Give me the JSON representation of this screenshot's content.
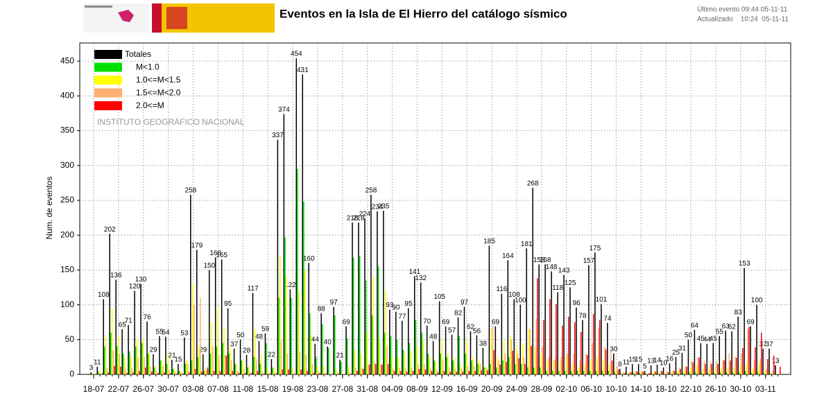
{
  "header": {
    "updates": [
      "Último evento 09:44 05-11-11",
      "Actualizado    10:24  05-11-11"
    ]
  },
  "chart_data": {
    "type": "bar",
    "title": "Eventos en la Isla de El Hierro del catálogo sísmico",
    "watermark": "INSTITUTO GEOGRÁFICO NACIONAL",
    "ylabel": "Num. de eventos",
    "ylim": [
      0,
      476
    ],
    "yticks": [
      0,
      50,
      100,
      150,
      200,
      250,
      300,
      350,
      400,
      450
    ],
    "grid": true,
    "legend": "upper left",
    "categories": [
      "18-07",
      null,
      null,
      null,
      "22-07",
      null,
      null,
      null,
      "26-07",
      null,
      null,
      null,
      "30-07",
      null,
      null,
      null,
      "03-08",
      null,
      null,
      null,
      "07-08",
      null,
      null,
      null,
      "11-08",
      null,
      null,
      null,
      "15-08",
      null,
      null,
      null,
      "19-08",
      null,
      null,
      null,
      "23-08",
      null,
      null,
      null,
      "27-08",
      null,
      null,
      null,
      "31-08",
      null,
      null,
      null,
      "04-09",
      null,
      null,
      null,
      "08-09",
      null,
      null,
      null,
      "12-09",
      null,
      null,
      null,
      "16-09",
      null,
      null,
      null,
      "20-09",
      null,
      null,
      null,
      "24-09",
      null,
      null,
      null,
      "28-09",
      null,
      null,
      null,
      "02-10",
      null,
      null,
      null,
      "06-10",
      null,
      null,
      null,
      "10-10",
      null,
      null,
      null,
      "14-10",
      null,
      null,
      null,
      "18-10",
      null,
      null,
      null,
      "22-10",
      null,
      null,
      null,
      "26-10",
      null,
      null,
      null,
      "30-10",
      null,
      null,
      null,
      "03-11",
      null,
      null
    ],
    "series": [
      {
        "name": "Totales",
        "color": "#000000",
        "values": [
          3,
          11,
          108,
          202,
          136,
          65,
          71,
          120,
          130,
          76,
          29,
          55,
          54,
          21,
          15,
          53,
          258,
          179,
          29,
          150,
          168,
          165,
          95,
          37,
          50,
          28,
          117,
          48,
          59,
          22,
          337,
          374,
          122,
          454,
          431,
          160,
          44,
          88,
          40,
          97,
          21,
          69,
          218,
          218,
          224,
          258,
          234,
          235,
          93,
          90,
          77,
          95,
          141,
          132,
          70,
          48,
          105,
          69,
          57,
          82,
          97,
          62,
          56,
          38,
          185,
          69,
          116,
          164,
          108,
          100,
          181,
          268,
          158,
          158,
          148,
          118,
          143,
          125,
          96,
          78,
          157,
          175,
          101,
          74,
          30,
          8,
          11,
          15,
          15,
          5,
          13,
          14,
          10,
          16,
          25,
          31,
          50,
          64,
          45,
          44,
          45,
          55,
          63,
          62,
          83,
          153,
          69,
          100,
          37,
          37,
          13
        ]
      },
      {
        "name": "M<1.0",
        "color": "#00e000",
        "values": [
          1,
          4,
          40,
          60,
          40,
          30,
          33,
          40,
          45,
          30,
          10,
          20,
          15,
          8,
          5,
          15,
          20,
          25,
          5,
          30,
          40,
          45,
          30,
          15,
          20,
          10,
          25,
          15,
          45,
          10,
          110,
          197,
          110,
          295,
          248,
          88,
          25,
          72,
          38,
          85,
          18,
          52,
          168,
          170,
          135,
          85,
          155,
          60,
          55,
          50,
          35,
          45,
          78,
          60,
          30,
          20,
          30,
          25,
          20,
          55,
          30,
          20,
          15,
          10,
          15,
          10,
          20,
          25,
          15,
          15,
          10,
          10,
          10,
          5,
          5,
          5,
          5,
          5,
          5,
          5,
          5,
          5,
          5,
          5,
          3,
          1,
          1,
          2,
          2,
          0,
          1,
          1,
          1,
          1,
          2,
          2,
          3,
          3,
          2,
          2,
          2,
          3,
          3,
          3,
          3,
          5,
          2,
          3,
          1,
          1,
          0
        ]
      },
      {
        "name": "1.0<=M<1.5",
        "color": "#ffff00",
        "values": [
          1,
          4,
          55,
          95,
          55,
          25,
          25,
          50,
          50,
          30,
          12,
          20,
          30,
          8,
          6,
          20,
          130,
          40,
          8,
          75,
          95,
          65,
          40,
          15,
          20,
          12,
          65,
          28,
          10,
          8,
          170,
          140,
          10,
          120,
          150,
          55,
          12,
          12,
          1,
          8,
          2,
          12,
          35,
          30,
          60,
          140,
          50,
          120,
          25,
          25,
          30,
          35,
          40,
          50,
          25,
          18,
          50,
          30,
          25,
          15,
          50,
          25,
          20,
          12,
          65,
          25,
          48,
          55,
          40,
          45,
          65,
          40,
          30,
          20,
          20,
          18,
          25,
          15,
          10,
          15,
          20,
          25,
          20,
          15,
          8,
          2,
          3,
          4,
          4,
          1,
          3,
          3,
          2,
          4,
          5,
          6,
          10,
          12,
          8,
          8,
          8,
          10,
          10,
          10,
          12,
          15,
          8,
          15,
          6,
          4,
          1
        ]
      },
      {
        "name": "1.5<=M<2.0",
        "color": "#ffb070",
        "values": [
          1,
          2,
          10,
          35,
          30,
          8,
          10,
          25,
          25,
          12,
          5,
          12,
          7,
          4,
          3,
          15,
          100,
          110,
          6,
          40,
          28,
          28,
          20,
          5,
          8,
          4,
          22,
          4,
          3,
          3,
          50,
          30,
          2,
          32,
          28,
          15,
          5,
          3,
          1,
          3,
          1,
          4,
          10,
          10,
          15,
          18,
          15,
          40,
          8,
          10,
          8,
          10,
          15,
          15,
          10,
          7,
          20,
          10,
          8,
          8,
          12,
          12,
          15,
          10,
          70,
          20,
          30,
          50,
          30,
          25,
          65,
          80,
          40,
          25,
          22,
          25,
          30,
          30,
          20,
          30,
          45,
          67,
          40,
          34,
          12,
          3,
          4,
          5,
          5,
          2,
          5,
          5,
          4,
          6,
          10,
          12,
          20,
          25,
          20,
          19,
          20,
          22,
          30,
          25,
          30,
          65,
          20,
          22,
          8,
          5,
          1
        ]
      },
      {
        "name": "2.0<=M",
        "color": "#ff0000",
        "values": [
          0,
          1,
          3,
          12,
          11,
          2,
          3,
          5,
          10,
          4,
          2,
          3,
          2,
          1,
          1,
          3,
          8,
          4,
          10,
          5,
          5,
          27,
          5,
          2,
          2,
          2,
          5,
          1,
          1,
          1,
          7,
          7,
          0,
          7,
          5,
          2,
          2,
          1,
          0,
          1,
          0,
          1,
          5,
          8,
          14,
          15,
          14,
          15,
          5,
          5,
          4,
          5,
          8,
          7,
          5,
          3,
          5,
          4,
          4,
          4,
          5,
          5,
          6,
          6,
          35,
          14,
          18,
          34,
          23,
          15,
          41,
          138,
          78,
          108,
          101,
          70,
          83,
          75,
          61,
          28,
          87,
          78,
          36,
          20,
          7,
          2,
          3,
          4,
          4,
          2,
          4,
          5,
          3,
          5,
          8,
          11,
          17,
          24,
          15,
          15,
          15,
          20,
          20,
          24,
          38,
          68,
          39,
          60,
          22,
          27,
          11
        ]
      }
    ]
  }
}
